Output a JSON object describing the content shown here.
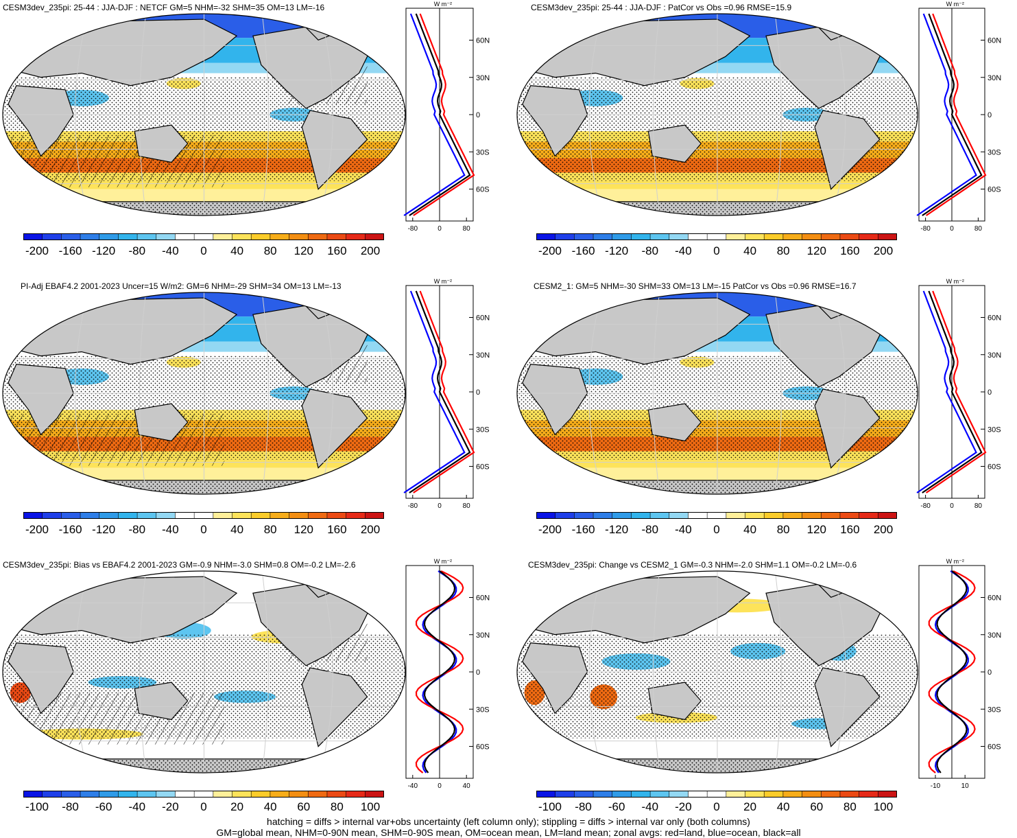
{
  "panels": [
    {
      "title": "CESM3dev_235pi: 25-44 : JJA-DJF : NETCF GM=5 NHM=-32 SHM=35 OM=13 LM=-16",
      "zonal_unit": "W m⁻²",
      "zonal_xticks": [
        "-80",
        "0",
        "80"
      ],
      "colorbar_labels": [
        "-200",
        "-160",
        "-120",
        "-80",
        "-40",
        "0",
        "40",
        "80",
        "120",
        "160",
        "200"
      ]
    },
    {
      "title": "CESM3dev_235pi: 25-44 : JJA-DJF : PatCor vs Obs =0.96 RMSE=15.9",
      "zonal_unit": "W m⁻²",
      "zonal_xticks": [
        "-80",
        "0",
        "80"
      ],
      "colorbar_labels": [
        "-200",
        "-160",
        "-120",
        "-80",
        "-40",
        "0",
        "40",
        "80",
        "120",
        "160",
        "200"
      ]
    },
    {
      "title": "PI-Adj EBAF4.2 2001-2023 Uncer=15 W/m2: GM=6 NHM=-29 SHM=34 OM=13 LM=-13",
      "zonal_unit": "W m⁻²",
      "zonal_xticks": [
        "-80",
        "0",
        "80"
      ],
      "colorbar_labels": [
        "-200",
        "-160",
        "-120",
        "-80",
        "-40",
        "0",
        "40",
        "80",
        "120",
        "160",
        "200"
      ]
    },
    {
      "title": "CESM2_1: GM=5 NHM=-30 SHM=33 OM=13 LM=-15 PatCor vs Obs =0.96 RMSE=16.7",
      "zonal_unit": "W m⁻²",
      "zonal_xticks": [
        "-80",
        "0",
        "80"
      ],
      "colorbar_labels": [
        "-200",
        "-160",
        "-120",
        "-80",
        "-40",
        "0",
        "40",
        "80",
        "120",
        "160",
        "200"
      ]
    },
    {
      "title": "CESM3dev_235pi: Bias vs EBAF4.2 2001-2023 GM=-0.9 NHM=-3.0 SHM=0.8 OM=-0.2 LM=-2.6",
      "zonal_unit": "W m⁻²",
      "zonal_xticks": [
        "-40",
        "0",
        "40"
      ],
      "colorbar_labels": [
        "-100",
        "-80",
        "-60",
        "-40",
        "-20",
        "0",
        "20",
        "40",
        "60",
        "80",
        "100"
      ]
    },
    {
      "title": "CESM3dev_235pi: Change vs CESM2_1 GM=-0.3 NHM=-2.0 SHM=1.1 OM=-0.2 LM=-0.6",
      "zonal_unit": "W m⁻²",
      "zonal_xticks": [
        "-10",
        "10"
      ],
      "colorbar_labels": [
        "-100",
        "-80",
        "-60",
        "-40",
        "-20",
        "0",
        "20",
        "40",
        "60",
        "80",
        "100"
      ]
    }
  ],
  "lat_ticks": [
    "60N",
    "30N",
    "0",
    "30S",
    "60S"
  ],
  "colors": {
    "palette": [
      "#0a14e6",
      "#1f3fe9",
      "#2a5ee8",
      "#2e7ee8",
      "#2f9be8",
      "#32b4ec",
      "#5dc5f0",
      "#93d8f3",
      "#ffffff",
      "#ffffff",
      "#fff09a",
      "#fde35a",
      "#fbcc2a",
      "#f7ad1a",
      "#f38e12",
      "#ef6a12",
      "#eb4a14",
      "#e62a18",
      "#cc1414"
    ],
    "land": "#c8c8c8",
    "zonal_land": "#ff0000",
    "zonal_ocean": "#0000ff",
    "zonal_all": "#000000"
  },
  "footer": {
    "line1": "hatching = diffs > internal var+obs uncertainty (left column only); stippling = diffs > internal var only (both columns)",
    "line2": "GM=global mean, NHM=0-90N mean, SHM=0-90S mean, OM=ocean mean, LM=land mean; zonal avgs: red=land, blue=ocean, black=all"
  }
}
